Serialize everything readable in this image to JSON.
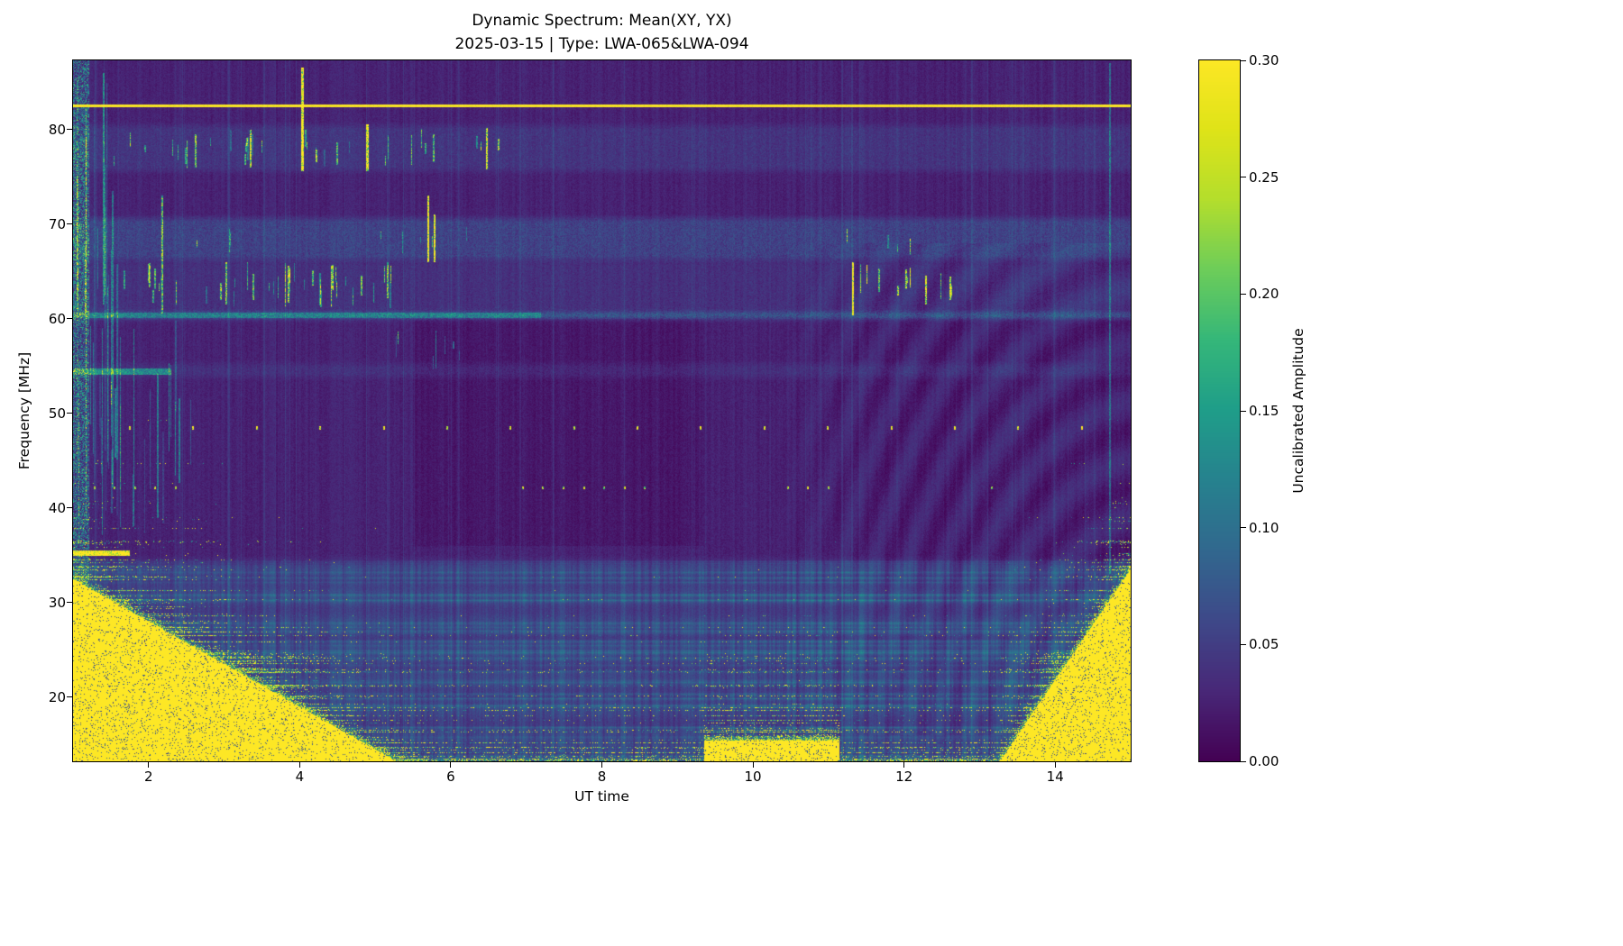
{
  "chart_data": {
    "type": "heatmap",
    "title": "Dynamic Spectrum: Mean(XY, YX)",
    "subtitle": "2025-03-15 | Type: LWA-065&LWA-094",
    "xlabel": "UT time",
    "ylabel": "Frequency [MHz]",
    "xlim": [
      1,
      15
    ],
    "ylim": [
      13.2,
      87.3
    ],
    "xtick_values": [
      2,
      4,
      6,
      8,
      10,
      12,
      14
    ],
    "xtick_labels": [
      "2",
      "4",
      "6",
      "8",
      "10",
      "12",
      "14"
    ],
    "ytick_values": [
      20,
      30,
      40,
      50,
      60,
      70,
      80
    ],
    "ytick_labels": [
      "20",
      "30",
      "40",
      "50",
      "60",
      "70",
      "80"
    ],
    "colorbar": {
      "label": "Uncalibrated Amplitude",
      "vmin": 0.0,
      "vmax": 0.3,
      "tick_values": [
        0.0,
        0.05,
        0.1,
        0.15,
        0.2,
        0.25,
        0.3
      ],
      "tick_labels": [
        "0.00",
        "0.05",
        "0.10",
        "0.15",
        "0.20",
        "0.25",
        "0.30"
      ],
      "colormap": "viridis"
    },
    "viridis_stops": [
      [
        0.0,
        "#440154"
      ],
      [
        0.1,
        "#482878"
      ],
      [
        0.2,
        "#3e4989"
      ],
      [
        0.3,
        "#31688e"
      ],
      [
        0.4,
        "#26828e"
      ],
      [
        0.5,
        "#1f9e89"
      ],
      [
        0.6,
        "#35b779"
      ],
      [
        0.7,
        "#6dcd59"
      ],
      [
        0.8,
        "#b4de2c"
      ],
      [
        0.9,
        "#dfe318"
      ],
      [
        1.0,
        "#fde725"
      ]
    ],
    "description": "Radio dynamic spectrum: dark viridis background with saturated low-frequency emission below ~33 MHz at 1-5 UT and 13.2-15 UT, a bright calibration line at 82.5 MHz, elevated bands near 60-70 MHz, periodic dotted sources at 48.4 and 42 MHz, vertical RFI streaks, and interference fringes after ~10 UT.",
    "features": {
      "seed": 20250315,
      "background": {
        "base": 0.027,
        "noise": 0.016
      },
      "low_band": {
        "f_max": 35,
        "boost": 0.022,
        "stripe_amp": 0.05
      },
      "dark_patch": {
        "t1": 5.5,
        "t2": 9.35,
        "f1": 36,
        "f2": 60,
        "depth": 0.008
      },
      "saturation_left": {
        "t1": 1.0,
        "t2": 5.1,
        "f_start": 32.5,
        "f_end": 14.0
      },
      "saturation_right": {
        "t1": 13.25,
        "t2": 15.0,
        "f_start": 13.0,
        "f_end": 33.5
      },
      "bottom_blob": {
        "t1": 9.35,
        "t2": 11.15,
        "f_top": 15.4
      },
      "cal_line": {
        "freq": 82.5,
        "half_width": 0.18,
        "amp": 0.34
      },
      "line_60": {
        "freq": 60.35,
        "half_width": 0.45,
        "amp": 0.045
      },
      "h_bands": [
        {
          "f1": 66.2,
          "f2": 70.6,
          "amp": 0.028
        },
        {
          "f1": 75.6,
          "f2": 80.4,
          "amp": 0.016
        },
        {
          "f1": 60.8,
          "f2": 66.0,
          "amp": 0.012
        },
        {
          "f1": 53.8,
          "f2": 55.2,
          "amp": 0.012
        }
      ],
      "h_segments": [
        {
          "freq": 35.2,
          "t1": 1.0,
          "t2": 1.75,
          "half_width": 0.3,
          "amp": 0.3
        },
        {
          "freq": 54.4,
          "t1": 1.0,
          "t2": 2.3,
          "half_width": 0.35,
          "amp": 0.09
        },
        {
          "freq": 60.35,
          "t1": 1.0,
          "t2": 7.2,
          "half_width": 0.3,
          "amp": 0.05
        }
      ],
      "left_edge": {
        "t_end": 1.22,
        "amp": 0.16
      },
      "dotted_lines": [
        {
          "freq": 48.45,
          "spacing": 0.84,
          "phase": 0.1,
          "amp": 0.26,
          "t1": 1.3,
          "t2": 14.6
        },
        {
          "freq": 42.1,
          "spacing": 0.27,
          "phase": 0.0,
          "amp": 0.22,
          "t_ranges": [
            [
              1.1,
              2.4
            ],
            [
              6.9,
              8.8
            ],
            [
              10.2,
              11.1
            ],
            [
              12.9,
              13.4
            ]
          ]
        }
      ],
      "rfi_bands": [
        {
          "f1": 61.0,
          "f2": 66.2,
          "t1": 1.6,
          "t2": 5.3,
          "count": 40,
          "amp": 0.1
        },
        {
          "f1": 61.0,
          "f2": 65.8,
          "t1": 11.1,
          "t2": 12.7,
          "count": 10,
          "amp": 0.14
        },
        {
          "f1": 75.8,
          "f2": 80.2,
          "t1": 1.4,
          "t2": 6.7,
          "count": 32,
          "amp": 0.1
        },
        {
          "f1": 66.4,
          "f2": 70.4,
          "t1": 2.0,
          "t2": 6.6,
          "count": 8,
          "amp": 0.12
        },
        {
          "f1": 66.4,
          "f2": 70.4,
          "t1": 11.0,
          "t2": 12.4,
          "count": 4,
          "amp": 0.12
        },
        {
          "f1": 54.0,
          "f2": 59.5,
          "t1": 4.8,
          "t2": 6.3,
          "count": 7,
          "amp": 0.08
        },
        {
          "f1": 36.0,
          "f2": 60.0,
          "t1": 1.15,
          "t2": 2.6,
          "count": 25,
          "amp": 0.05
        },
        {
          "f1": 36.0,
          "f2": 87.0,
          "t1": 1.05,
          "t2": 1.6,
          "count": 18,
          "amp": 0.06
        }
      ],
      "strong_rfi": [
        {
          "t": 4.02,
          "f1": 75.6,
          "f2": 86.5,
          "amp": 0.3,
          "w": 3
        },
        {
          "t": 4.88,
          "f1": 75.6,
          "f2": 80.5,
          "amp": 0.26,
          "w": 3
        },
        {
          "t": 5.7,
          "f1": 66.0,
          "f2": 73.0,
          "amp": 0.3,
          "w": 2
        },
        {
          "t": 5.78,
          "f1": 66.0,
          "f2": 71.0,
          "amp": 0.28,
          "w": 2
        },
        {
          "t": 6.47,
          "f1": 75.8,
          "f2": 80.2,
          "amp": 0.22,
          "w": 2
        },
        {
          "t": 2.18,
          "f1": 60.5,
          "f2": 73.0,
          "amp": 0.16,
          "w": 2
        },
        {
          "t": 11.32,
          "f1": 60.3,
          "f2": 66.0,
          "amp": 0.3,
          "w": 2
        },
        {
          "t": 12.28,
          "f1": 61.5,
          "f2": 64.5,
          "amp": 0.22,
          "w": 2
        },
        {
          "t": 3.35,
          "f1": 76.0,
          "f2": 80.0,
          "amp": 0.2,
          "w": 2
        },
        {
          "t": 2.62,
          "f1": 76.0,
          "f2": 79.5,
          "amp": 0.16,
          "w": 2
        },
        {
          "t": 14.72,
          "f1": 33.0,
          "f2": 87.0,
          "amp": 0.07,
          "w": 2
        }
      ],
      "fringes": {
        "t_start": 10.2,
        "amp": 0.011,
        "f1": 16,
        "f2": 68
      },
      "vertical_lines_full": {
        "count": 70,
        "amp": 0.012
      }
    }
  }
}
